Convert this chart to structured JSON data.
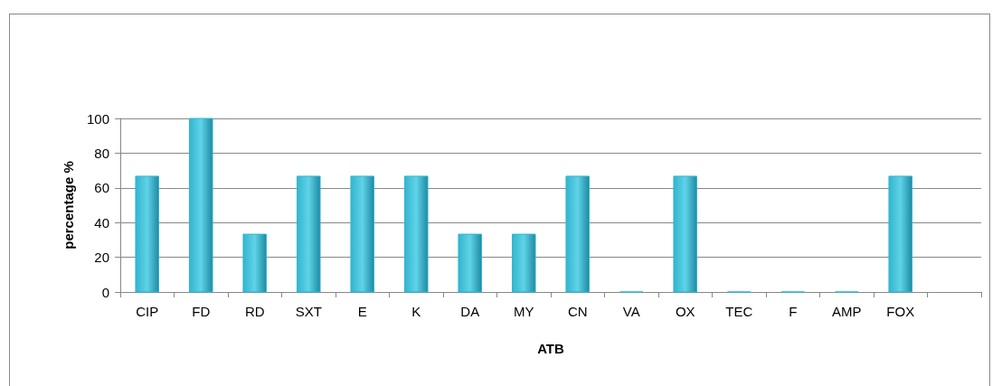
{
  "chart_data": {
    "type": "bar",
    "xlabel": "ATB",
    "ylabel": "percentage %",
    "categories": [
      "CIP",
      "FD",
      "RD",
      "SXT",
      "E",
      "K",
      "DA",
      "MY",
      "CN",
      "VA",
      "OX",
      "TEC",
      "F",
      "AMP",
      "FOX",
      null
    ],
    "values": [
      66.7,
      100,
      33.3,
      66.7,
      66.7,
      66.7,
      33.3,
      33.3,
      66.7,
      0,
      66.7,
      0,
      0,
      0,
      66.7,
      null
    ],
    "color": "#33b5cf",
    "ylim": [
      0,
      100
    ],
    "yticks": [
      0,
      20,
      40,
      60,
      80,
      100
    ],
    "grid": "y"
  }
}
